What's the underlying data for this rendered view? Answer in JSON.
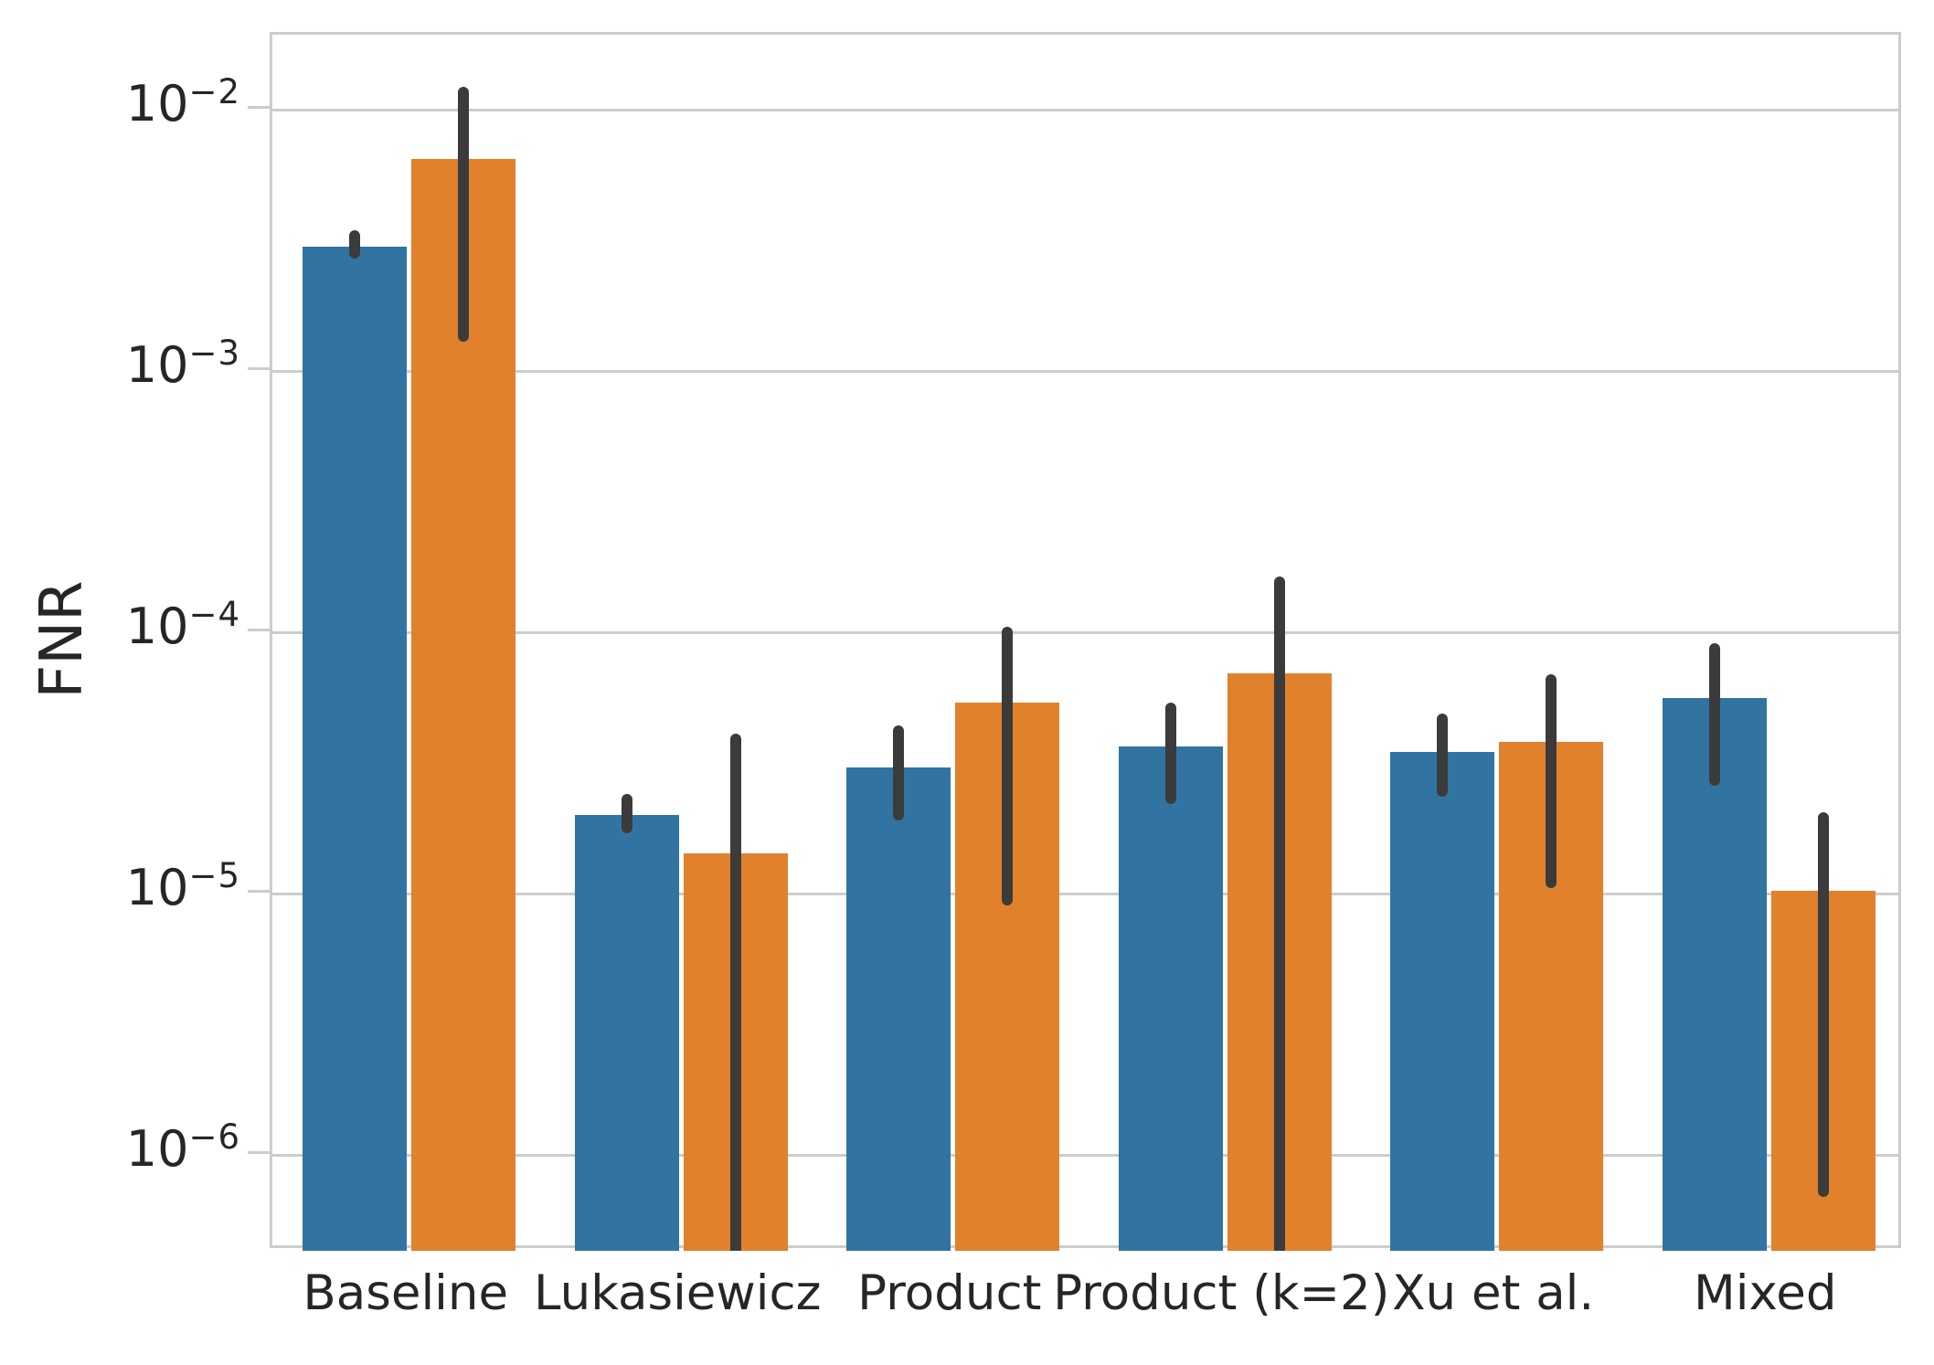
{
  "chart_data": {
    "type": "bar",
    "title": "",
    "xlabel": "",
    "ylabel": "FNR",
    "yscale": "log",
    "ylim": [
      4.3e-07,
      0.0194
    ],
    "grid": true,
    "legend": false,
    "categories": [
      "Baseline",
      "Lukasiewicz",
      "Product",
      "Product (k=2)",
      "Xu et al.",
      "Mixed"
    ],
    "yticks": [
      {
        "value": 0.01,
        "base": "10",
        "exponent": "−2"
      },
      {
        "value": 0.001,
        "base": "10",
        "exponent": "−3"
      },
      {
        "value": 0.0001,
        "base": "10",
        "exponent": "−4"
      },
      {
        "value": 1e-05,
        "base": "10",
        "exponent": "−5"
      },
      {
        "value": 1e-06,
        "base": "10",
        "exponent": "−6"
      }
    ],
    "series": [
      {
        "name": "blue",
        "color": "#3274a1",
        "values": [
          0.003,
          2e-05,
          3.05e-05,
          3.65e-05,
          3.5e-05,
          5.6e-05
        ],
        "ci_low": [
          0.0027,
          1.7e-05,
          1.9e-05,
          2.2e-05,
          2.35e-05,
          2.6e-05
        ],
        "ci_high": [
          0.00345,
          2.4e-05,
          4.4e-05,
          5.4e-05,
          4.9e-05,
          9.1e-05
        ]
      },
      {
        "name": "orange",
        "color": "#e1812c",
        "values": [
          0.0065,
          1.43e-05,
          5.4e-05,
          7e-05,
          3.8e-05,
          1.03e-05
        ],
        "ci_low": [
          0.0013,
          null,
          9e-06,
          null,
          1.05e-05,
          6.9e-07
        ],
        "ci_high": [
          0.0123,
          4.1e-05,
          0.000105,
          0.000164,
          6.9e-05,
          2.05e-05
        ]
      }
    ],
    "error_bar_color": "#3b3b3b",
    "gridline_color": "#cccccc"
  }
}
